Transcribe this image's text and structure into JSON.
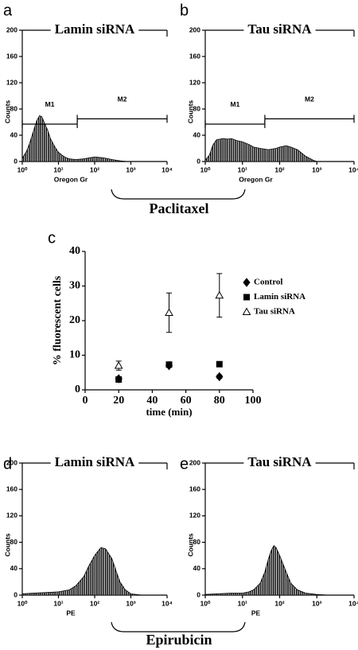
{
  "chart_data": [
    {
      "type": "area",
      "panel": "a",
      "title": "Lamin siRNA",
      "xlabel": "Oregon Gr",
      "ylabel": "Counts",
      "xlog": true,
      "xlim": [
        1,
        10000
      ],
      "xticks": [
        {
          "value": 1,
          "label": "10⁰"
        },
        {
          "value": 10,
          "label": "10¹"
        },
        {
          "value": 100,
          "label": "10²"
        },
        {
          "value": 1000,
          "label": "10³"
        },
        {
          "value": 10000,
          "label": "10⁴"
        }
      ],
      "ylim": [
        0,
        200
      ],
      "yticks": [
        0,
        40,
        80,
        120,
        160,
        200
      ],
      "x": [
        1,
        1.3,
        1.6,
        2,
        2.5,
        3,
        3.5,
        4,
        5,
        6,
        8,
        10,
        13,
        16,
        20,
        30,
        50,
        80,
        100,
        150,
        200,
        300,
        500,
        800,
        1000
      ],
      "values": [
        5,
        15,
        28,
        45,
        62,
        70,
        68,
        60,
        48,
        35,
        22,
        14,
        9,
        6,
        4,
        3,
        4,
        6,
        7,
        6,
        5,
        3,
        1,
        0,
        0
      ],
      "gates": [
        {
          "label": "M1",
          "range": [
            1,
            33
          ],
          "level": 57
        },
        {
          "label": "M2",
          "range": [
            33,
            10000
          ],
          "level": 65
        }
      ]
    },
    {
      "type": "area",
      "panel": "b",
      "title": "Tau siRNA",
      "xlabel": "Oregon Gr",
      "ylabel": "Counts",
      "xlog": true,
      "xlim": [
        1,
        10000
      ],
      "xticks": [
        {
          "value": 1,
          "label": "10⁰"
        },
        {
          "value": 10,
          "label": "10¹"
        },
        {
          "value": 100,
          "label": "10²"
        },
        {
          "value": 1000,
          "label": "10³"
        },
        {
          "value": 10000,
          "label": "10⁴"
        }
      ],
      "ylim": [
        0,
        200
      ],
      "yticks": [
        0,
        40,
        80,
        120,
        160,
        200
      ],
      "x": [
        1,
        1.3,
        1.6,
        2,
        3,
        4,
        5,
        7,
        10,
        15,
        20,
        30,
        50,
        80,
        100,
        150,
        200,
        300,
        500,
        800,
        1000
      ],
      "values": [
        2,
        10,
        25,
        33,
        35,
        34,
        35,
        32,
        30,
        26,
        22,
        20,
        18,
        20,
        22,
        24,
        22,
        18,
        8,
        2,
        0
      ],
      "gates": [
        {
          "label": "M1",
          "range": [
            1,
            40
          ],
          "level": 57
        },
        {
          "label": "M2",
          "range": [
            40,
            10000
          ],
          "level": 65
        }
      ]
    },
    {
      "type": "scatter",
      "panel": "c",
      "xlabel": "time (min)",
      "ylabel": "% fluorescent cells",
      "xlim": [
        0,
        100
      ],
      "xticks": [
        0,
        20,
        40,
        60,
        80,
        100
      ],
      "ylim": [
        0,
        40
      ],
      "yticks": [
        0,
        10,
        20,
        30,
        40
      ],
      "x": [
        20,
        50,
        80
      ],
      "series": [
        {
          "name": "Control",
          "marker": "diamond",
          "color": "#000000",
          "values": [
            3.2,
            7.0,
            3.8
          ],
          "errors": [
            0.5,
            0.3,
            0.5
          ]
        },
        {
          "name": "Lamin siRNA",
          "marker": "square",
          "color": "#000000",
          "values": [
            3.0,
            7.3,
            7.4
          ],
          "errors": [
            0.4,
            0.3,
            0.5
          ]
        },
        {
          "name": "Tau siRNA",
          "marker": "triangle",
          "color": "#000000",
          "values": [
            7.0,
            22.3,
            27.3
          ],
          "errors": [
            1.3,
            5.7,
            6.3
          ]
        }
      ]
    },
    {
      "type": "area",
      "panel": "d",
      "title": "Lamin siRNA",
      "xlabel": "PE",
      "ylabel": "Counts",
      "xlog": true,
      "xlim": [
        1,
        10000
      ],
      "xticks": [
        {
          "value": 1,
          "label": "10⁰"
        },
        {
          "value": 10,
          "label": "10¹"
        },
        {
          "value": 100,
          "label": "10²"
        },
        {
          "value": 1000,
          "label": "10³"
        },
        {
          "value": 10000,
          "label": "10⁴"
        }
      ],
      "ylim": [
        0,
        200
      ],
      "yticks": [
        0,
        40,
        80,
        120,
        160,
        200
      ],
      "x": [
        1,
        2,
        5,
        10,
        20,
        30,
        50,
        70,
        100,
        130,
        150,
        200,
        300,
        400,
        500,
        700,
        1000,
        2000
      ],
      "values": [
        2,
        3,
        4,
        5,
        8,
        14,
        28,
        45,
        60,
        68,
        72,
        70,
        55,
        35,
        20,
        8,
        2,
        0
      ]
    },
    {
      "type": "area",
      "panel": "e",
      "title": "Tau siRNA",
      "xlabel": "PE",
      "ylabel": "Counts",
      "xlog": true,
      "xlim": [
        1,
        10000
      ],
      "xticks": [
        {
          "value": 1,
          "label": "10⁰"
        },
        {
          "value": 10,
          "label": "10¹"
        },
        {
          "value": 100,
          "label": "10²"
        },
        {
          "value": 1000,
          "label": "10³"
        },
        {
          "value": 10000,
          "label": "10⁴"
        }
      ],
      "ylim": [
        0,
        200
      ],
      "yticks": [
        0,
        40,
        80,
        120,
        160,
        200
      ],
      "x": [
        1,
        2,
        5,
        10,
        15,
        20,
        30,
        40,
        50,
        60,
        70,
        80,
        100,
        150,
        200,
        300,
        500,
        1000,
        2000
      ],
      "values": [
        1,
        2,
        3,
        3,
        5,
        8,
        18,
        35,
        55,
        68,
        75,
        72,
        60,
        35,
        18,
        8,
        3,
        1,
        0
      ]
    }
  ],
  "annotations": [
    "Paclitaxel",
    "Epirubicin"
  ]
}
